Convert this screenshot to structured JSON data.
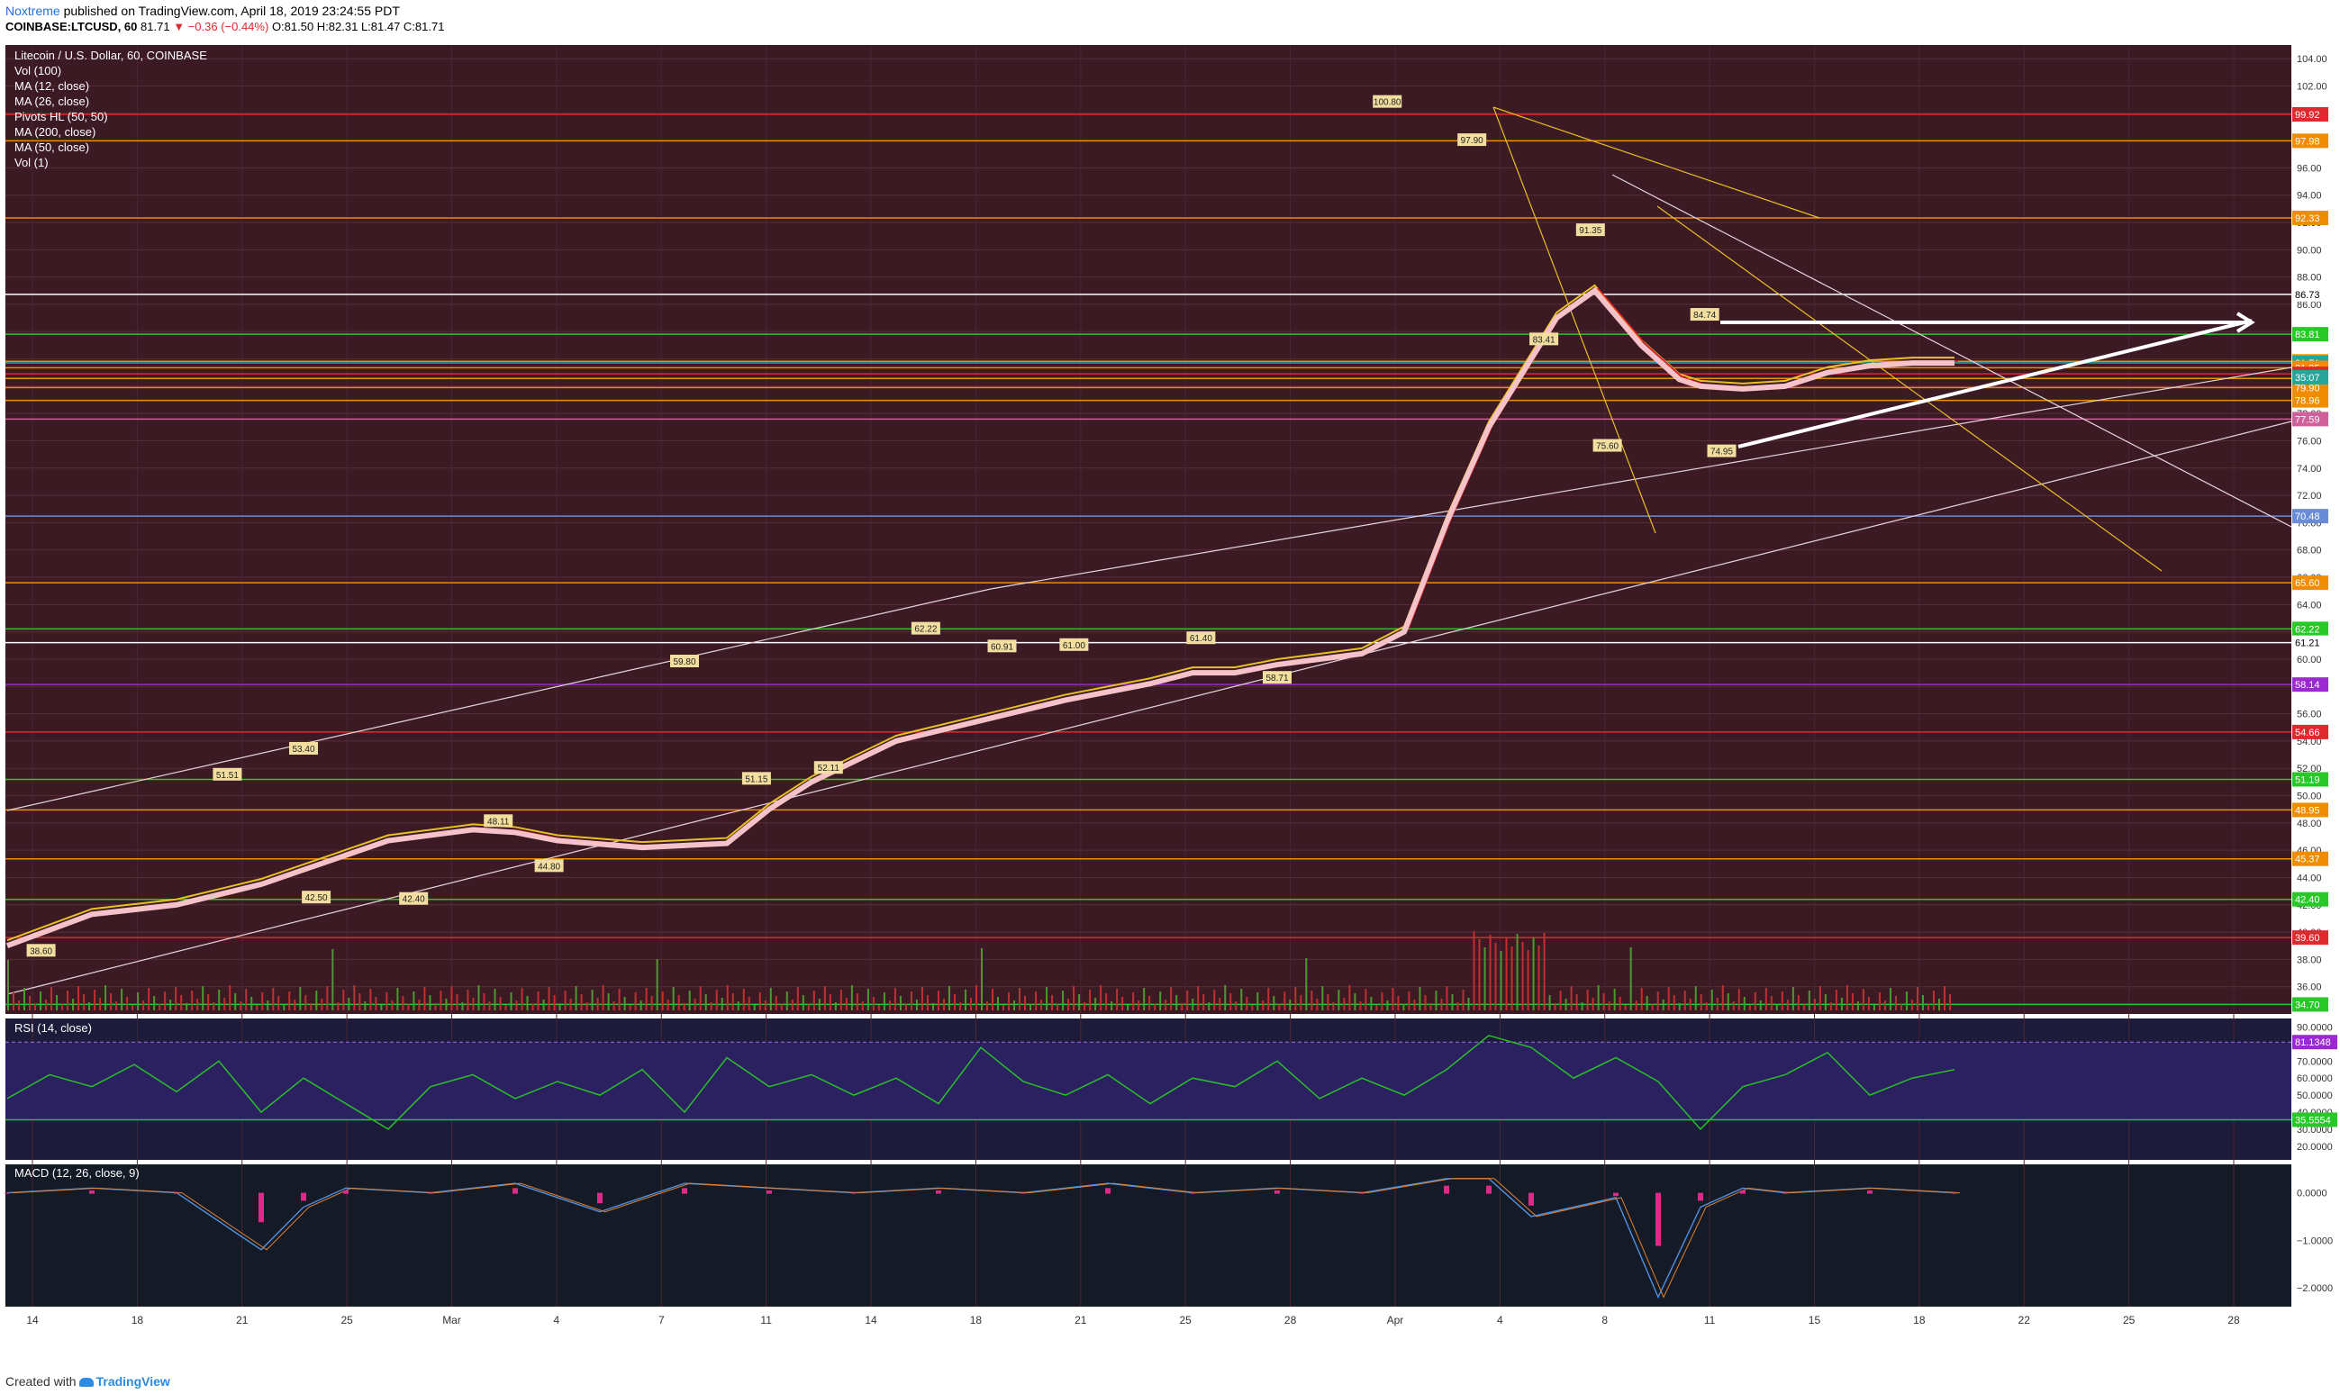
{
  "header": {
    "publisher": "Noxtreme",
    "published_text": "published on TradingView.com, April 18, 2019 23:24:55 PDT",
    "symbol": "COINBASE:LTCUSD, 60",
    "last": "81.71",
    "change": "−0.36 (−0.44%)",
    "ohlc": "O:81.50 H:82.31 L:81.47 C:81.71"
  },
  "footer": {
    "created_with": "Created with",
    "brand": "TradingView"
  },
  "colors": {
    "bg_top": "#3b1a24",
    "bg_rsi": "#1d1b3a",
    "bg_macd": "#141a26",
    "price_line": "#f4c2c8",
    "ma_fast": "#e0202a",
    "ma_slow": "#e8c020",
    "rsi_line": "#28c028",
    "macd_hist": "#e02888"
  },
  "chart_data": {
    "type": "line",
    "title": "Litecoin / U.S. Dollar, 60, COINBASE",
    "indicators": [
      "Vol (100)",
      "MA (12, close)",
      "MA (26, close)",
      "Pivots HL (50, 50)",
      "MA (200, close)",
      "MA (50, close)",
      "Vol (1)"
    ],
    "x_axis_labels": [
      "14",
      "18",
      "21",
      "25",
      "Mar",
      "4",
      "7",
      "11",
      "14",
      "18",
      "21",
      "25",
      "28",
      "Apr",
      "4",
      "8",
      "11",
      "15",
      "18",
      "22",
      "25",
      "28"
    ],
    "y_ticks": [
      "104.00",
      "102.00",
      "100.00",
      "98.00",
      "96.00",
      "94.00",
      "92.00",
      "90.00",
      "88.00",
      "86.00",
      "84.00",
      "82.00",
      "80.00",
      "78.00",
      "76.00",
      "74.00",
      "72.00",
      "70.00",
      "68.00",
      "66.00",
      "64.00",
      "62.00",
      "60.00",
      "58.00",
      "56.00",
      "54.00",
      "52.00",
      "50.00",
      "48.00",
      "46.00",
      "44.00",
      "42.00",
      "40.00",
      "38.00",
      "36.00"
    ],
    "ylim": [
      34,
      105
    ],
    "price_series": {
      "name": "MA (200, close)",
      "x": [
        0,
        2,
        4,
        6,
        9,
        11,
        12,
        13,
        15,
        17,
        18,
        19,
        21,
        23,
        25,
        27,
        28,
        29,
        30,
        31,
        32,
        33,
        34,
        35,
        36,
        36.6,
        37.5,
        38.6,
        39.5,
        40,
        41,
        42,
        43,
        44,
        45,
        46
      ],
      "y": [
        39.0,
        41.3,
        42.0,
        43.5,
        46.7,
        47.5,
        47.3,
        46.7,
        46.2,
        46.5,
        49.0,
        51.0,
        54.0,
        55.5,
        57.0,
        58.2,
        59.0,
        59.0,
        59.6,
        60.0,
        60.4,
        62.0,
        70.0,
        77.0,
        82.0,
        85.0,
        87.0,
        83.0,
        80.5,
        80.0,
        79.8,
        80.0,
        81.0,
        81.5,
        81.7,
        81.7
      ]
    },
    "horizontal_levels": [
      {
        "value": 99.92,
        "label": "99.92",
        "color": "#e0282e"
      },
      {
        "value": 97.98,
        "label": "97.98",
        "color": "#f08c00"
      },
      {
        "value": 92.33,
        "label": "92.33",
        "color": "#f08c00"
      },
      {
        "value": 86.73,
        "label": "86.73",
        "color": "#ffffff"
      },
      {
        "value": 83.81,
        "label": "83.81",
        "color": "#28c828"
      },
      {
        "value": 81.82,
        "label": "81.82",
        "color": "#f08c00"
      },
      {
        "value": 81.71,
        "label": "81.71",
        "color": "#26a69a"
      },
      {
        "value": 81.35,
        "label": "81.35",
        "color": "#f08c00"
      },
      {
        "value": 80.91,
        "label": "80.91",
        "color": "#e0282e"
      },
      {
        "value": 80.57,
        "label": "80.57",
        "color": "#f08c00"
      },
      {
        "value": 79.9,
        "label": "79.90",
        "color": "#f08c00"
      },
      {
        "value": 78.96,
        "label": "78.96",
        "color": "#f08c00"
      },
      {
        "value": 77.59,
        "label": "77.59",
        "color": "#d0609a"
      },
      {
        "value": 70.48,
        "label": "70.48",
        "color": "#6a8cd8"
      },
      {
        "value": 65.6,
        "label": "65.60",
        "color": "#f08c00"
      },
      {
        "value": 62.22,
        "label": "62.22",
        "color": "#28c828"
      },
      {
        "value": 61.21,
        "label": "61.21",
        "color": "#ffffff"
      },
      {
        "value": 58.14,
        "label": "58.14",
        "color": "#9b28d0"
      },
      {
        "value": 54.66,
        "label": "54.66",
        "color": "#e0282e"
      },
      {
        "value": 51.19,
        "label": "51.19",
        "color": "#28c828"
      },
      {
        "value": 48.95,
        "label": "48.95",
        "color": "#f08c00"
      },
      {
        "value": 45.37,
        "label": "45.37",
        "color": "#f08c00"
      },
      {
        "value": 42.4,
        "label": "42.40",
        "color": "#28c828"
      },
      {
        "value": 39.6,
        "label": "39.60",
        "color": "#e0282e"
      },
      {
        "value": 34.7,
        "label": "34.70",
        "color": "#28c828"
      }
    ],
    "countdown_label": "35:07",
    "rsi": {
      "title": "RSI (14, close)",
      "ylim": [
        12,
        95
      ],
      "ticks": [
        "90.0000",
        "80.0000",
        "70.0000",
        "60.0000",
        "50.0000",
        "40.0000",
        "30.0000",
        "20.0000"
      ],
      "upper_label": "81.1348",
      "lower_label": "35.5554",
      "upper": 81.1348,
      "lower": 35.5554,
      "x": [
        0,
        1,
        2,
        3,
        4,
        5,
        6,
        7,
        8,
        9,
        10,
        11,
        12,
        13,
        14,
        15,
        16,
        17,
        18,
        19,
        20,
        21,
        22,
        23,
        24,
        25,
        26,
        27,
        28,
        29,
        30,
        31,
        32,
        33,
        34,
        35,
        36,
        37,
        38,
        39,
        40,
        41,
        42,
        43,
        44,
        45,
        46
      ],
      "y": [
        48,
        62,
        55,
        68,
        52,
        70,
        40,
        60,
        45,
        30,
        55,
        62,
        48,
        58,
        50,
        65,
        40,
        72,
        55,
        62,
        50,
        60,
        45,
        78,
        58,
        50,
        62,
        45,
        60,
        55,
        70,
        48,
        60,
        50,
        65,
        85,
        78,
        60,
        72,
        58,
        30,
        55,
        62,
        75,
        50,
        60,
        65
      ]
    },
    "macd": {
      "title": "MACD (12, 26, close, 9)",
      "ylim": [
        -2.4,
        0.6
      ],
      "ticks": [
        "0.0000",
        "−1.0000",
        "−2.0000"
      ],
      "x": [
        0,
        2,
        4,
        6,
        7,
        8,
        10,
        12,
        14,
        16,
        18,
        20,
        22,
        24,
        26,
        28,
        30,
        32,
        34,
        35,
        36,
        38,
        39,
        40,
        41,
        42,
        44,
        46
      ],
      "y": [
        0.0,
        0.1,
        0.0,
        -1.2,
        -0.3,
        0.1,
        0.0,
        0.2,
        -0.4,
        0.2,
        0.1,
        0.0,
        0.1,
        0.0,
        0.2,
        0.0,
        0.1,
        0.0,
        0.3,
        0.3,
        -0.5,
        -0.1,
        -2.2,
        -0.3,
        0.1,
        0.0,
        0.1,
        0.0
      ]
    },
    "pivot_labels": [
      {
        "x": 0.8,
        "y": 38.6,
        "label": "38.60"
      },
      {
        "x": 5.2,
        "y": 51.5,
        "label": "51.51"
      },
      {
        "x": 7.0,
        "y": 53.4,
        "label": "53.40"
      },
      {
        "x": 7.3,
        "y": 42.5,
        "label": "42.50"
      },
      {
        "x": 9.6,
        "y": 42.4,
        "label": "42.40"
      },
      {
        "x": 11.6,
        "y": 48.1,
        "label": "48.11"
      },
      {
        "x": 12.8,
        "y": 44.8,
        "label": "44.80"
      },
      {
        "x": 16.0,
        "y": 59.8,
        "label": "59.80"
      },
      {
        "x": 17.7,
        "y": 51.2,
        "label": "51.15"
      },
      {
        "x": 19.4,
        "y": 52.0,
        "label": "52.11"
      },
      {
        "x": 21.7,
        "y": 62.2,
        "label": "62.22"
      },
      {
        "x": 23.5,
        "y": 60.9,
        "label": "60.91"
      },
      {
        "x": 25.2,
        "y": 61.0,
        "label": "61.00"
      },
      {
        "x": 28.2,
        "y": 61.5,
        "label": "61.40"
      },
      {
        "x": 30.0,
        "y": 58.6,
        "label": "58.71"
      },
      {
        "x": 32.6,
        "y": 100.8,
        "label": "100.80"
      },
      {
        "x": 34.6,
        "y": 98.0,
        "label": "97.90"
      },
      {
        "x": 36.3,
        "y": 83.4,
        "label": "83.41"
      },
      {
        "x": 37.4,
        "y": 91.4,
        "label": "91.35"
      },
      {
        "x": 37.8,
        "y": 75.6,
        "label": "75.60"
      },
      {
        "x": 40.1,
        "y": 85.2,
        "label": "84.74"
      },
      {
        "x": 40.5,
        "y": 75.2,
        "label": "74.95"
      }
    ]
  }
}
